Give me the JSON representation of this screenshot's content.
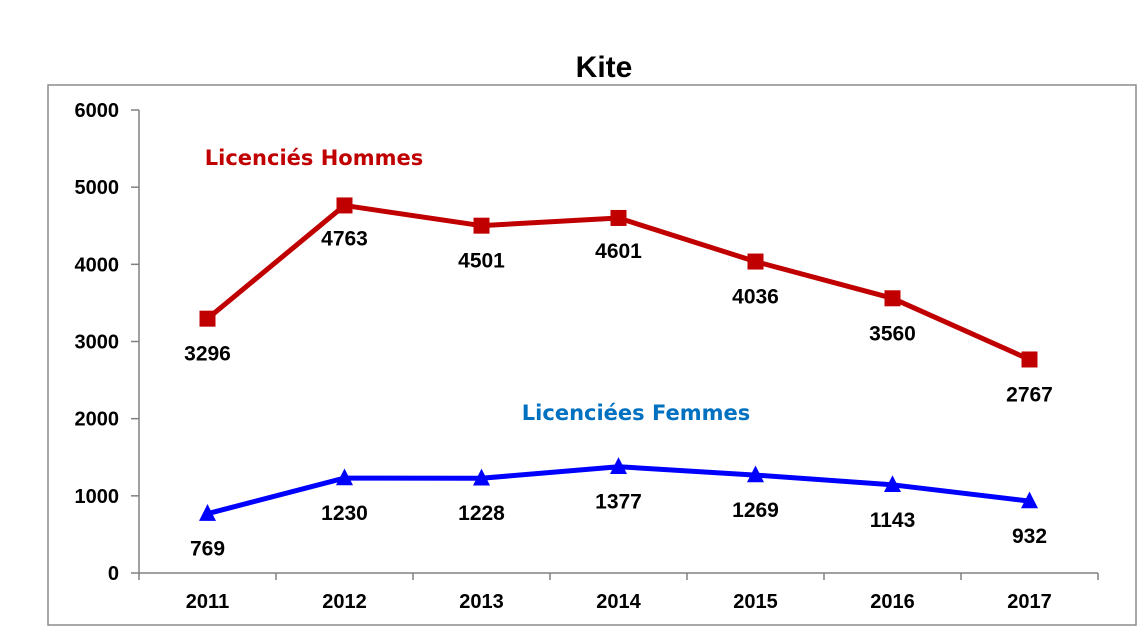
{
  "chart_data": {
    "type": "line",
    "title": "Kite",
    "xlabel": "",
    "ylabel": "",
    "categories": [
      "2011",
      "2012",
      "2013",
      "2014",
      "2015",
      "2016",
      "2017"
    ],
    "y_ticks": [
      "0",
      "1000",
      "2000",
      "3000",
      "4000",
      "5000",
      "6000"
    ],
    "ylim": [
      0,
      6000
    ],
    "grid": false,
    "series": [
      {
        "name": "Licenciés Hommes",
        "color": "#c00000",
        "marker": "square",
        "values": [
          3296,
          4763,
          4501,
          4601,
          4036,
          3560,
          2767
        ],
        "labels": [
          "3296",
          "4763",
          "4501",
          "4601",
          "4036",
          "3560",
          "2767"
        ]
      },
      {
        "name": "Licenciées Femmes",
        "color": "#0000ff",
        "label_color": "#0070c0",
        "marker": "triangle",
        "values": [
          769,
          1230,
          1228,
          1377,
          1269,
          1143,
          932
        ],
        "labels": [
          "769",
          "1230",
          "1228",
          "1377",
          "1269",
          "1143",
          "932"
        ]
      }
    ]
  }
}
